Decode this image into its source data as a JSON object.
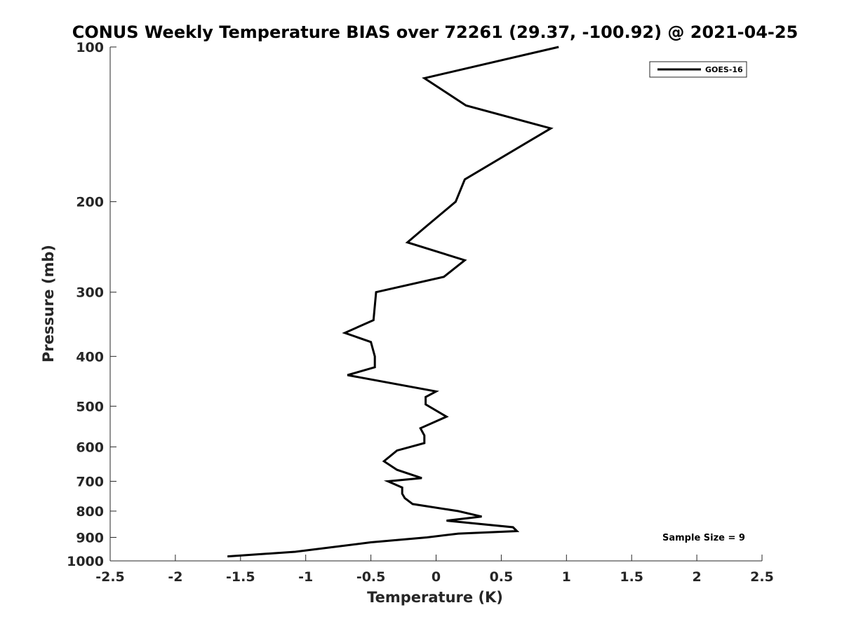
{
  "chart_data": {
    "type": "line",
    "title": "CONUS Weekly Temperature BIAS over 72261 (29.37, -100.92) @ 2021-04-25",
    "xlabel": "Temperature (K)",
    "ylabel": "Pressure (mb)",
    "xlim": [
      -2.5,
      2.5
    ],
    "ylim": [
      1000,
      100
    ],
    "yscale": "log",
    "y_reversed": true,
    "grid": false,
    "legend_position": "top-right",
    "x_ticks": [
      -2.5,
      -2,
      -1.5,
      -1,
      -0.5,
      0,
      0.5,
      1,
      1.5,
      2,
      2.5
    ],
    "x_tick_labels": [
      "-2.5",
      "-2",
      "-1.5",
      "-1",
      "-0.5",
      "0",
      "0.5",
      "1",
      "1.5",
      "2",
      "2.5"
    ],
    "y_ticks": [
      100,
      200,
      300,
      400,
      500,
      600,
      700,
      800,
      900,
      1000
    ],
    "y_tick_labels": [
      "100",
      "200",
      "300",
      "400",
      "500",
      "600",
      "700",
      "800",
      "900",
      "1000"
    ],
    "series": [
      {
        "name": "GOES-16",
        "color": "#000000",
        "points": [
          {
            "x": 0.94,
            "y": 100
          },
          {
            "x": -0.09,
            "y": 115
          },
          {
            "x": 0.23,
            "y": 130
          },
          {
            "x": 0.88,
            "y": 144
          },
          {
            "x": 0.22,
            "y": 181
          },
          {
            "x": 0.15,
            "y": 200
          },
          {
            "x": -0.09,
            "y": 225
          },
          {
            "x": -0.22,
            "y": 240
          },
          {
            "x": 0.22,
            "y": 260
          },
          {
            "x": 0.06,
            "y": 280
          },
          {
            "x": -0.46,
            "y": 300
          },
          {
            "x": -0.48,
            "y": 340
          },
          {
            "x": -0.7,
            "y": 360
          },
          {
            "x": -0.5,
            "y": 375
          },
          {
            "x": -0.47,
            "y": 400
          },
          {
            "x": -0.47,
            "y": 420
          },
          {
            "x": -0.68,
            "y": 435
          },
          {
            "x": 0.0,
            "y": 468
          },
          {
            "x": -0.08,
            "y": 480
          },
          {
            "x": -0.08,
            "y": 496
          },
          {
            "x": 0.08,
            "y": 524
          },
          {
            "x": -0.12,
            "y": 552
          },
          {
            "x": -0.09,
            "y": 570
          },
          {
            "x": -0.09,
            "y": 590
          },
          {
            "x": -0.3,
            "y": 610
          },
          {
            "x": -0.4,
            "y": 640
          },
          {
            "x": -0.3,
            "y": 665
          },
          {
            "x": -0.11,
            "y": 690
          },
          {
            "x": -0.37,
            "y": 700
          },
          {
            "x": -0.26,
            "y": 720
          },
          {
            "x": -0.26,
            "y": 740
          },
          {
            "x": -0.24,
            "y": 755
          },
          {
            "x": -0.18,
            "y": 775
          },
          {
            "x": 0.17,
            "y": 800
          },
          {
            "x": 0.35,
            "y": 820
          },
          {
            "x": 0.08,
            "y": 835
          },
          {
            "x": 0.59,
            "y": 860
          },
          {
            "x": 0.62,
            "y": 875
          },
          {
            "x": 0.17,
            "y": 885
          },
          {
            "x": -0.07,
            "y": 900
          },
          {
            "x": -0.5,
            "y": 920
          },
          {
            "x": -1.08,
            "y": 960
          },
          {
            "x": -1.6,
            "y": 980
          }
        ]
      }
    ],
    "annotation": "Sample Size = 9"
  }
}
